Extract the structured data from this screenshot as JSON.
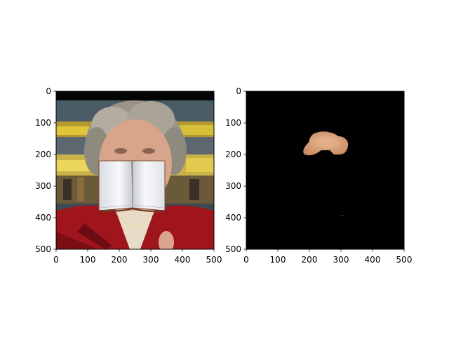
{
  "chart_data": [
    {
      "type": "image",
      "title": "",
      "xlabel": "",
      "ylabel": "",
      "xlim": [
        0,
        500
      ],
      "ylim": [
        500,
        0
      ],
      "xticks": [
        0,
        100,
        200,
        300,
        400,
        500
      ],
      "yticks": [
        0,
        100,
        200,
        300,
        400,
        500
      ],
      "content": "photo"
    },
    {
      "type": "image",
      "title": "",
      "xlabel": "",
      "ylabel": "",
      "xlim": [
        0,
        500
      ],
      "ylim": [
        500,
        0
      ],
      "xticks": [
        0,
        100,
        200,
        300,
        400,
        500
      ],
      "yticks": [
        0,
        100,
        200,
        300,
        400,
        500
      ],
      "content": "mask"
    }
  ],
  "colors": {
    "frame": "#000000",
    "mask_background": "#000000",
    "skin": "#dca57f",
    "jacket": "#a0141c"
  }
}
